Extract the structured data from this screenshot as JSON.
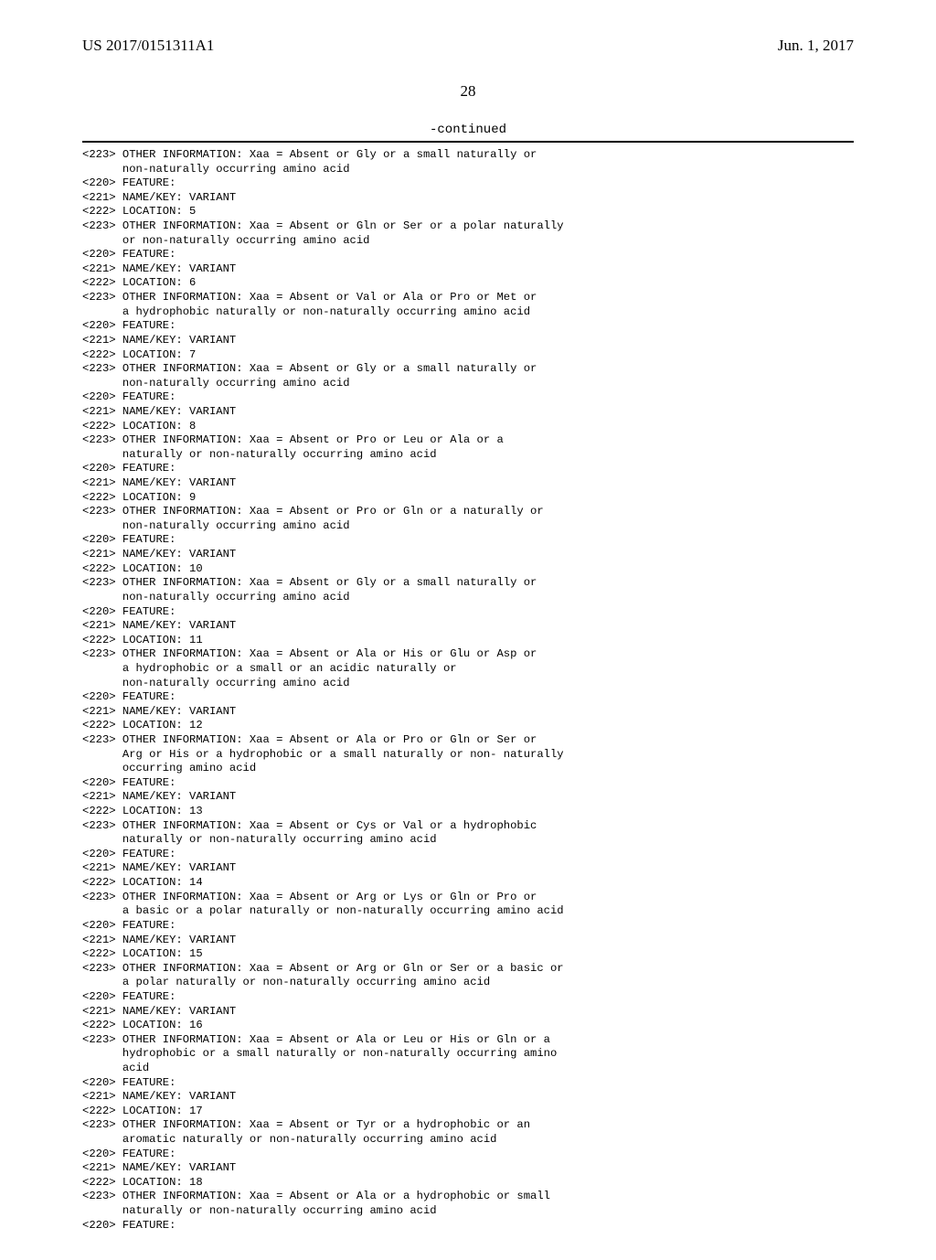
{
  "header": {
    "left": "US 2017/0151311A1",
    "right": "Jun. 1, 2017"
  },
  "page_number": "28",
  "continued_label": "-continued",
  "entries": [
    {
      "tag": "<223>",
      "text": "OTHER INFORMATION: Xaa = Absent or Gly or a small naturally or",
      "cont": [
        "non-naturally occurring amino acid"
      ]
    },
    {
      "tag": "<220>",
      "text": "FEATURE:"
    },
    {
      "tag": "<221>",
      "text": "NAME/KEY: VARIANT"
    },
    {
      "tag": "<222>",
      "text": "LOCATION: 5"
    },
    {
      "tag": "<223>",
      "text": "OTHER INFORMATION: Xaa = Absent or Gln or Ser or a polar naturally",
      "cont": [
        "or non-naturally occurring amino acid"
      ]
    },
    {
      "tag": "<220>",
      "text": "FEATURE:"
    },
    {
      "tag": "<221>",
      "text": "NAME/KEY: VARIANT"
    },
    {
      "tag": "<222>",
      "text": "LOCATION: 6"
    },
    {
      "tag": "<223>",
      "text": "OTHER INFORMATION: Xaa = Absent or Val or Ala or Pro or Met or",
      "cont": [
        "a hydrophobic naturally or non-naturally occurring amino acid"
      ]
    },
    {
      "tag": "<220>",
      "text": "FEATURE:"
    },
    {
      "tag": "<221>",
      "text": "NAME/KEY: VARIANT"
    },
    {
      "tag": "<222>",
      "text": "LOCATION: 7"
    },
    {
      "tag": "<223>",
      "text": "OTHER INFORMATION: Xaa = Absent or Gly or a small naturally or",
      "cont": [
        "non-naturally occurring amino acid"
      ]
    },
    {
      "tag": "<220>",
      "text": "FEATURE:"
    },
    {
      "tag": "<221>",
      "text": "NAME/KEY: VARIANT"
    },
    {
      "tag": "<222>",
      "text": "LOCATION: 8"
    },
    {
      "tag": "<223>",
      "text": "OTHER INFORMATION: Xaa = Absent or Pro or Leu or Ala or a",
      "cont": [
        "naturally or non-naturally occurring amino acid"
      ]
    },
    {
      "tag": "<220>",
      "text": "FEATURE:"
    },
    {
      "tag": "<221>",
      "text": "NAME/KEY: VARIANT"
    },
    {
      "tag": "<222>",
      "text": "LOCATION: 9"
    },
    {
      "tag": "<223>",
      "text": "OTHER INFORMATION: Xaa = Absent or Pro or Gln or a naturally or",
      "cont": [
        "non-naturally occurring amino acid"
      ]
    },
    {
      "tag": "<220>",
      "text": "FEATURE:"
    },
    {
      "tag": "<221>",
      "text": "NAME/KEY: VARIANT"
    },
    {
      "tag": "<222>",
      "text": "LOCATION: 10"
    },
    {
      "tag": "<223>",
      "text": "OTHER INFORMATION: Xaa = Absent or Gly or a small naturally or",
      "cont": [
        "non-naturally occurring amino acid"
      ]
    },
    {
      "tag": "<220>",
      "text": "FEATURE:"
    },
    {
      "tag": "<221>",
      "text": "NAME/KEY: VARIANT"
    },
    {
      "tag": "<222>",
      "text": "LOCATION: 11"
    },
    {
      "tag": "<223>",
      "text": "OTHER INFORMATION: Xaa = Absent or Ala or His or Glu or Asp or",
      "cont": [
        "a hydrophobic or a small or an acidic naturally or",
        "non-naturally occurring amino acid"
      ]
    },
    {
      "tag": "<220>",
      "text": "FEATURE:"
    },
    {
      "tag": "<221>",
      "text": "NAME/KEY: VARIANT"
    },
    {
      "tag": "<222>",
      "text": "LOCATION: 12"
    },
    {
      "tag": "<223>",
      "text": "OTHER INFORMATION: Xaa = Absent or Ala or Pro or Gln or Ser or",
      "cont": [
        "Arg or His or a hydrophobic or a small naturally or non- naturally",
        "occurring amino acid"
      ]
    },
    {
      "tag": "<220>",
      "text": "FEATURE:"
    },
    {
      "tag": "<221>",
      "text": "NAME/KEY: VARIANT"
    },
    {
      "tag": "<222>",
      "text": "LOCATION: 13"
    },
    {
      "tag": "<223>",
      "text": "OTHER INFORMATION: Xaa = Absent or Cys or Val or a hydrophobic",
      "cont": [
        "naturally or non-naturally occurring amino acid"
      ]
    },
    {
      "tag": "<220>",
      "text": "FEATURE:"
    },
    {
      "tag": "<221>",
      "text": "NAME/KEY: VARIANT"
    },
    {
      "tag": "<222>",
      "text": "LOCATION: 14"
    },
    {
      "tag": "<223>",
      "text": "OTHER INFORMATION: Xaa = Absent or Arg or Lys or Gln or Pro or",
      "cont": [
        "a basic or a polar naturally or non-naturally occurring amino acid"
      ]
    },
    {
      "tag": "<220>",
      "text": "FEATURE:"
    },
    {
      "tag": "<221>",
      "text": "NAME/KEY: VARIANT"
    },
    {
      "tag": "<222>",
      "text": "LOCATION: 15"
    },
    {
      "tag": "<223>",
      "text": "OTHER INFORMATION: Xaa = Absent or Arg or Gln or Ser or a basic or",
      "cont": [
        "a polar naturally or non-naturally occurring amino acid"
      ]
    },
    {
      "tag": "<220>",
      "text": "FEATURE:"
    },
    {
      "tag": "<221>",
      "text": "NAME/KEY: VARIANT"
    },
    {
      "tag": "<222>",
      "text": "LOCATION: 16"
    },
    {
      "tag": "<223>",
      "text": "OTHER INFORMATION: Xaa = Absent or Ala or Leu or His or Gln or a",
      "cont": [
        "hydrophobic or a small naturally or non-naturally occurring amino",
        "acid"
      ]
    },
    {
      "tag": "<220>",
      "text": "FEATURE:"
    },
    {
      "tag": "<221>",
      "text": "NAME/KEY: VARIANT"
    },
    {
      "tag": "<222>",
      "text": "LOCATION: 17"
    },
    {
      "tag": "<223>",
      "text": "OTHER INFORMATION: Xaa = Absent or Tyr or a hydrophobic or an",
      "cont": [
        "aromatic naturally or non-naturally occurring amino acid"
      ]
    },
    {
      "tag": "<220>",
      "text": "FEATURE:"
    },
    {
      "tag": "<221>",
      "text": "NAME/KEY: VARIANT"
    },
    {
      "tag": "<222>",
      "text": "LOCATION: 18"
    },
    {
      "tag": "<223>",
      "text": "OTHER INFORMATION: Xaa = Absent or Ala or a hydrophobic or small",
      "cont": [
        "naturally or non-naturally occurring amino acid"
      ]
    },
    {
      "tag": "<220>",
      "text": "FEATURE:"
    }
  ]
}
